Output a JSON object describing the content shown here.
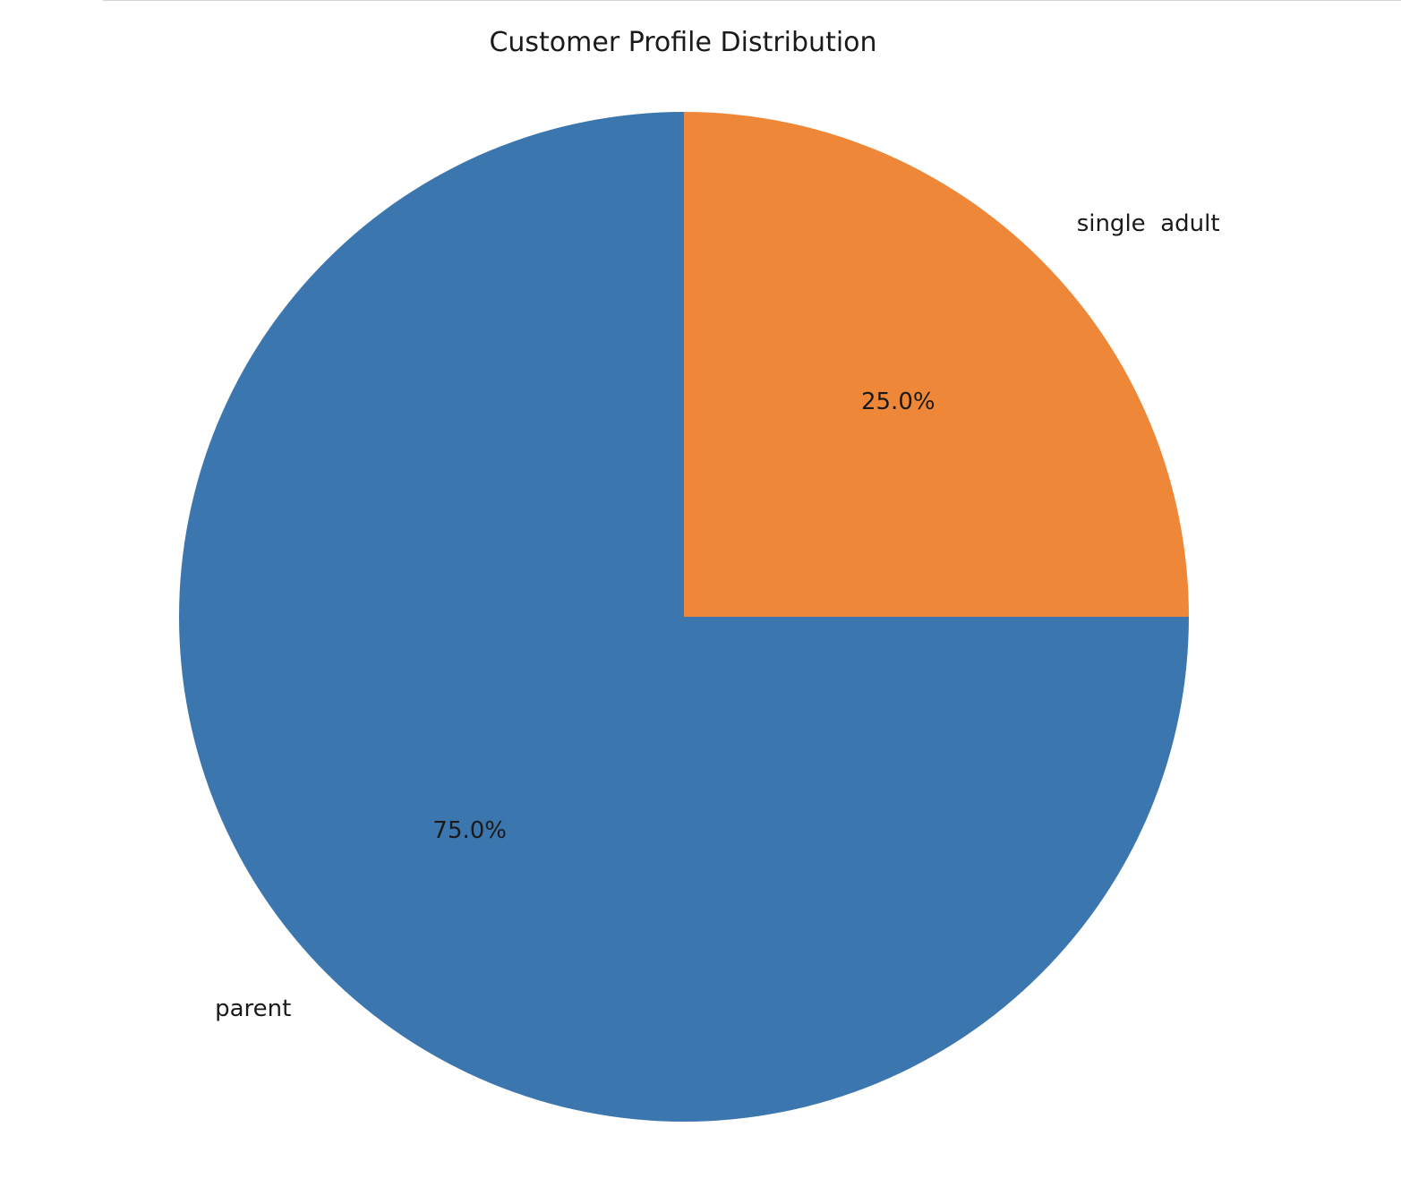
{
  "chart_data": {
    "type": "pie",
    "title": "Customer Profile Distribution",
    "start_angle_deg": 90,
    "direction": "counterclockwise",
    "slices": [
      {
        "label": "parent",
        "value": 75.0,
        "pct_label": "75.0%",
        "color": "#3c76ae"
      },
      {
        "label": "single  adult",
        "value": 25.0,
        "pct_label": "25.0%",
        "color": "#ee8738"
      }
    ]
  }
}
